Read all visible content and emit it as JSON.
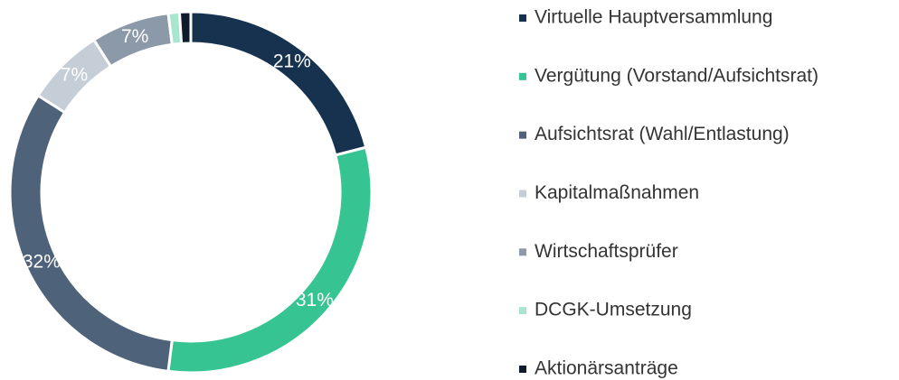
{
  "chart_data": {
    "type": "donut",
    "categories": [
      "Virtuelle Hauptversammlung",
      "Vergütung (Vorstand/Aufsichtsrat)",
      "Aufsichtsrat (Wahl/Entlastung)",
      "Kapitalmaßnahmen",
      "Wirtschaftsprüfer",
      "DCGK-Umsetzung",
      "Aktionärsanträge"
    ],
    "values": [
      21,
      31,
      32,
      7,
      7,
      1,
      1
    ],
    "value_labels": [
      "21%",
      "31%",
      "32%",
      "7%",
      "7%",
      null,
      null
    ],
    "colors": [
      "#17324f",
      "#37c493",
      "#4e627a",
      "#c5cdd6",
      "#8b99a8",
      "#a8e6cf",
      "#0d1b2a"
    ],
    "legend": "right"
  }
}
